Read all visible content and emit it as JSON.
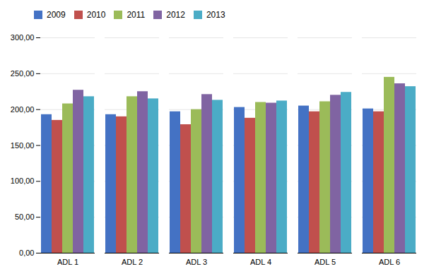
{
  "chart_data": {
    "type": "bar",
    "categories": [
      "ADL 1",
      "ADL 2",
      "ADL 3",
      "ADL 4",
      "ADL 5",
      "ADL 6"
    ],
    "series": [
      {
        "name": "2009",
        "color": "#4472C4",
        "values": [
          193,
          193,
          197,
          203,
          205,
          201
        ]
      },
      {
        "name": "2010",
        "color": "#C0504D",
        "values": [
          185,
          190,
          179,
          188,
          197,
          197
        ]
      },
      {
        "name": "2011",
        "color": "#9BBB59",
        "values": [
          208,
          218,
          200,
          210,
          211,
          245
        ]
      },
      {
        "name": "2012",
        "color": "#8064A2",
        "values": [
          227,
          225,
          221,
          209,
          220,
          236
        ]
      },
      {
        "name": "2013",
        "color": "#4BACC6",
        "values": [
          218,
          215,
          213,
          212,
          224,
          232
        ]
      }
    ],
    "ylim": [
      0,
      300
    ],
    "yticks": [
      {
        "value": 0,
        "label": "0,00"
      },
      {
        "value": 50,
        "label": "50,00"
      },
      {
        "value": 100,
        "label": "100,00"
      },
      {
        "value": 150,
        "label": "150,00"
      },
      {
        "value": 200,
        "label": "200,00"
      },
      {
        "value": 250,
        "label": "250,00"
      },
      {
        "value": 300,
        "label": "300,00"
      }
    ],
    "grid": true,
    "legend": "right"
  }
}
